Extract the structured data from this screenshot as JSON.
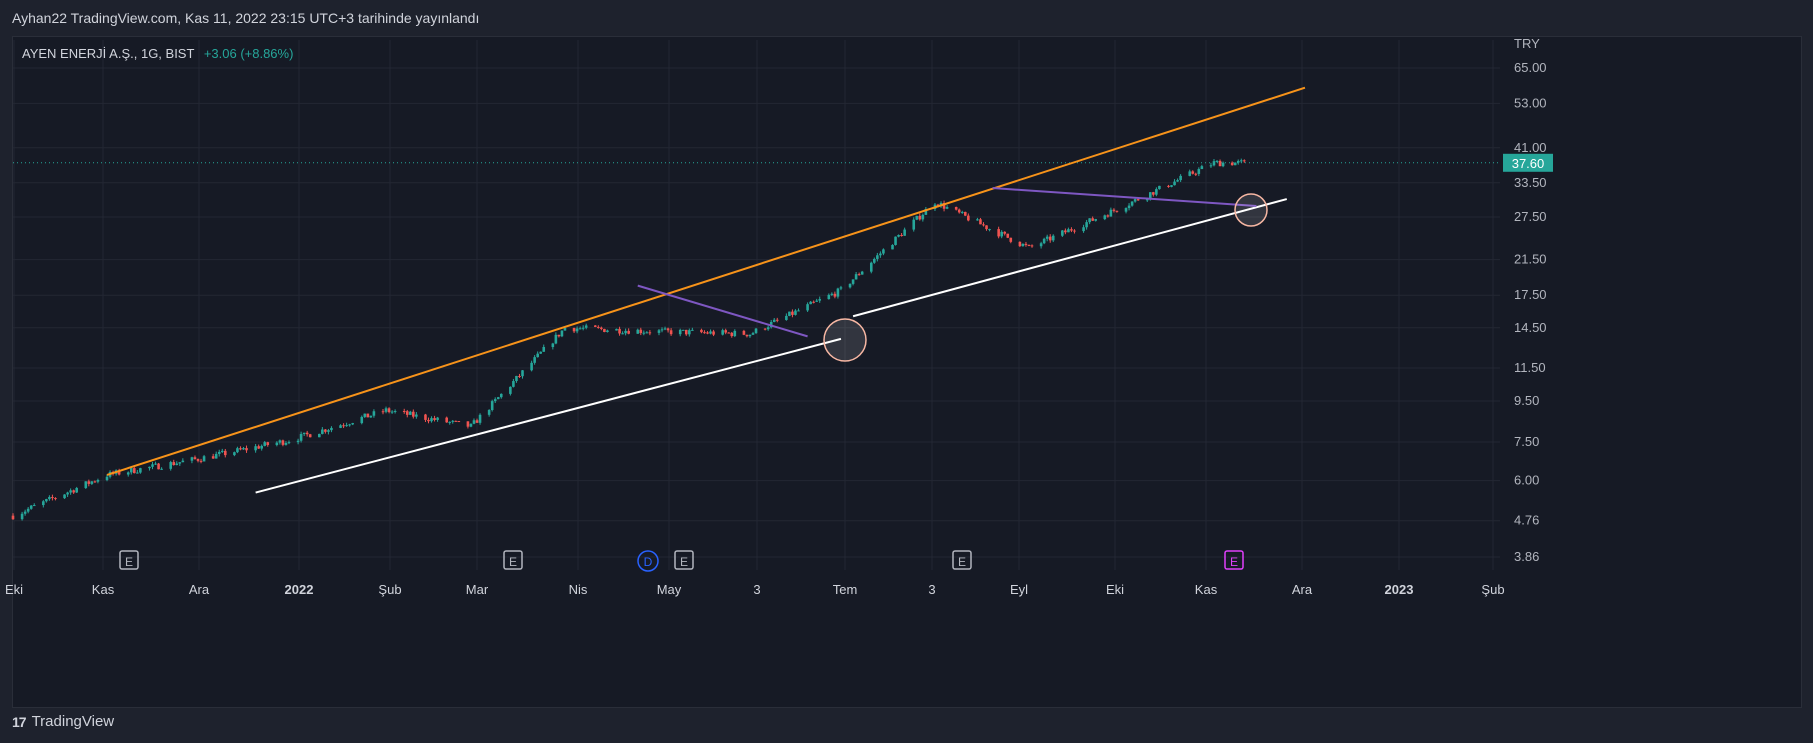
{
  "header": {
    "publish_line": "Ayhan22 TradingView.com, Kas 11, 2022 23:15 UTC+3 tarihinde yayınlandı"
  },
  "legend": {
    "symbol": "AYEN ENERJİ A.Ş., 1G, BIST",
    "change": "+3.06 (+8.86%)"
  },
  "footer": {
    "brand": "TradingView"
  },
  "colors": {
    "background": "#161a25",
    "up": "#26a69a",
    "down": "#ef5350",
    "channel_top": "#f7931a",
    "channel_bottom": "#ffffff",
    "trendline": "#7e57c2",
    "price_tag": "#26a69a"
  },
  "chart_data": {
    "type": "candlestick",
    "currency_label": "TRY",
    "scale": "log",
    "last_price_label": "37.60",
    "y_ticks": [
      "65.00",
      "53.00",
      "41.00",
      "33.50",
      "27.50",
      "21.50",
      "17.50",
      "14.50",
      "11.50",
      "9.50",
      "7.50",
      "6.00",
      "4.76",
      "3.86"
    ],
    "x_ticks": [
      "Eki",
      "Kas",
      "Ara",
      "2022",
      "Şub",
      "Mar",
      "Nis",
      "May",
      "3",
      "Tem",
      "3",
      "Eyl",
      "Eki",
      "Kas",
      "Ara",
      "2023",
      "Şub"
    ],
    "event_markers": [
      {
        "label": "E",
        "near": "Kas 2021",
        "color": "#b2b5be"
      },
      {
        "label": "E",
        "near": "Mar 2022",
        "color": "#b2b5be"
      },
      {
        "label": "D",
        "near": "May 2022",
        "color": "#2962ff"
      },
      {
        "label": "E",
        "near": "May 2022",
        "color": "#b2b5be"
      },
      {
        "label": "E",
        "near": "Ağu 2022",
        "color": "#b2b5be"
      },
      {
        "label": "E",
        "near": "Kas 2022",
        "color": "#e040fb"
      }
    ],
    "close_series_approx": [
      {
        "date": "2021-10",
        "value": 4.9
      },
      {
        "date": "2021-11",
        "value": 6.2
      },
      {
        "date": "2021-12",
        "value": 6.8
      },
      {
        "date": "2022-01",
        "value": 7.6
      },
      {
        "date": "2022-02",
        "value": 9.0
      },
      {
        "date": "2022-03",
        "value": 8.2
      },
      {
        "date": "2022-04",
        "value": 14.5
      },
      {
        "date": "2022-05",
        "value": 14.2
      },
      {
        "date": "2022-06",
        "value": 14.0
      },
      {
        "date": "2022-07",
        "value": 18.0
      },
      {
        "date": "2022-08",
        "value": 30.0
      },
      {
        "date": "2022-09",
        "value": 23.0
      },
      {
        "date": "2022-10",
        "value": 29.0
      },
      {
        "date": "2022-11",
        "value": 37.6
      }
    ],
    "drawings": [
      {
        "kind": "trendline",
        "name": "upper channel",
        "color": "#f7931a",
        "from": {
          "date": "2021-11",
          "value": 6.2
        },
        "to": {
          "date": "2022-12",
          "value": 58.0
        }
      },
      {
        "kind": "trendline",
        "name": "lower channel",
        "color": "#ffffff",
        "from": {
          "date": "2021-12-20",
          "value": 5.6
        },
        "to": {
          "date": "2022-07-01",
          "value": 13.6
        }
      },
      {
        "kind": "trendline",
        "name": "lower channel 2",
        "color": "#ffffff",
        "from": {
          "date": "2022-07-05",
          "value": 15.5
        },
        "to": {
          "date": "2022-11-25",
          "value": 30.5
        }
      },
      {
        "kind": "trendline",
        "name": "falling resistance 1",
        "color": "#7e57c2",
        "from": {
          "date": "2022-04-25",
          "value": 18.5
        },
        "to": {
          "date": "2022-06-20",
          "value": 13.8
        }
      },
      {
        "kind": "trendline",
        "name": "falling resistance 2",
        "color": "#7e57c2",
        "from": {
          "date": "2022-08-20",
          "value": 32.5
        },
        "to": {
          "date": "2022-11-15",
          "value": 29.3
        }
      }
    ]
  }
}
